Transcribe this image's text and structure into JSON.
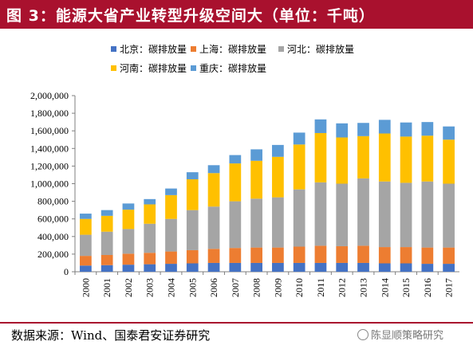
{
  "header": {
    "title": "图 3：能源大省产业转型升级空间大（单位：千吨）"
  },
  "footer": {
    "source": "数据来源：Wind、国泰君安证券研究",
    "watermark": "陈显顺策略研究"
  },
  "colors": {
    "title_bg": "#a9112e",
    "beijing": "#4472c4",
    "shanghai": "#ed7d31",
    "hebei": "#a5a5a5",
    "henan": "#ffc000",
    "chongqing": "#5b9bd5"
  },
  "chart_data": {
    "type": "bar",
    "stacked": true,
    "title": "",
    "xlabel": "",
    "ylabel": "",
    "ylim": [
      0,
      2000000
    ],
    "yticks": [
      "0",
      "200,000",
      "400,000",
      "600,000",
      "800,000",
      "1,000,000",
      "1,200,000",
      "1,400,000",
      "1,600,000",
      "1,800,000",
      "2,000,000"
    ],
    "grid": false,
    "legend_position": "top",
    "categories": [
      "2000",
      "2001",
      "2002",
      "2003",
      "2004",
      "2005",
      "2006",
      "2007",
      "2008",
      "2009",
      "2010",
      "2011",
      "2012",
      "2013",
      "2014",
      "2015",
      "2016",
      "2017"
    ],
    "series": [
      {
        "name": "北京：碳排放量",
        "color": "#4472c4",
        "values": [
          70000,
          75000,
          80000,
          85000,
          90000,
          95000,
          100000,
          100000,
          100000,
          100000,
          100000,
          100000,
          100000,
          100000,
          95000,
          95000,
          90000,
          90000
        ]
      },
      {
        "name": "上海：碳排放量",
        "color": "#ed7d31",
        "values": [
          110000,
          115000,
          125000,
          130000,
          140000,
          150000,
          160000,
          170000,
          175000,
          175000,
          185000,
          195000,
          190000,
          195000,
          185000,
          185000,
          185000,
          185000
        ]
      },
      {
        "name": "河北：碳排放量",
        "color": "#a5a5a5",
        "values": [
          240000,
          265000,
          280000,
          330000,
          370000,
          455000,
          480000,
          530000,
          555000,
          570000,
          650000,
          720000,
          710000,
          765000,
          745000,
          730000,
          750000,
          725000
        ]
      },
      {
        "name": "河南：碳排放量",
        "color": "#ffc000",
        "values": [
          180000,
          180000,
          220000,
          220000,
          270000,
          350000,
          380000,
          430000,
          430000,
          460000,
          510000,
          560000,
          525000,
          480000,
          545000,
          525000,
          520000,
          500000
        ]
      },
      {
        "name": "重庆：碳排放量",
        "color": "#5b9bd5",
        "values": [
          60000,
          65000,
          70000,
          60000,
          75000,
          80000,
          90000,
          95000,
          130000,
          135000,
          135000,
          155000,
          160000,
          150000,
          155000,
          160000,
          155000,
          150000
        ]
      }
    ]
  }
}
